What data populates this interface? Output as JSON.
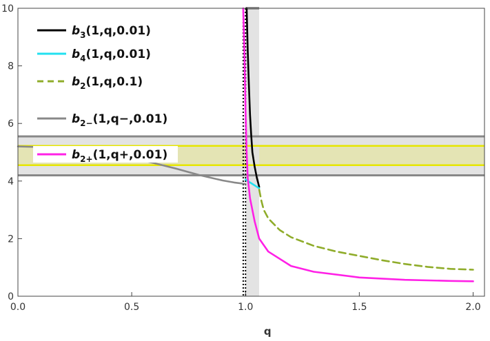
{
  "chart_data": {
    "type": "line",
    "title": "",
    "xlabel": "q",
    "ylabel": "",
    "xlim": [
      0,
      2.05
    ],
    "ylim": [
      0,
      10
    ],
    "xticks": [
      0.0,
      0.5,
      1.0,
      1.5,
      2.0
    ],
    "xtick_labels": [
      "0.0",
      "0.5",
      "1.0",
      "1.5",
      "2.0"
    ],
    "yticks": [
      0,
      2,
      4,
      6,
      8,
      10
    ],
    "ytick_labels": [
      "0",
      "2",
      "4",
      "6",
      "8",
      "10"
    ],
    "grid": false,
    "legend_position": "top-left",
    "series": [
      {
        "name": "b3(1,q,0.01)",
        "label_parts": {
          "main": "b",
          "sub": "3",
          "args": "(1,q,0.01)"
        },
        "color": "#000000",
        "style": "solid",
        "points": [
          [
            1.005,
            10
          ],
          [
            1.01,
            8.5
          ],
          [
            1.015,
            7.3
          ],
          [
            1.02,
            6.3
          ],
          [
            1.025,
            5.6
          ],
          [
            1.03,
            5.0
          ],
          [
            1.04,
            4.5
          ],
          [
            1.05,
            4.1
          ],
          [
            1.06,
            3.8
          ]
        ]
      },
      {
        "name": "b4(1,q,0.01)",
        "label_parts": {
          "main": "b",
          "sub": "4",
          "args": "(1,q,0.01)"
        },
        "color": "#22e0f0",
        "style": "solid",
        "points": [
          [
            1.0,
            4.05
          ],
          [
            1.03,
            3.9
          ],
          [
            1.06,
            3.75
          ]
        ]
      },
      {
        "name": "b2(1,q,0.1)",
        "label_parts": {
          "main": "b",
          "sub": "2",
          "args": "(1,q,0.1)"
        },
        "color": "#8fac2a",
        "style": "dashed",
        "points": [
          [
            1.06,
            3.7
          ],
          [
            1.07,
            3.3
          ],
          [
            1.08,
            3.0
          ],
          [
            1.1,
            2.7
          ],
          [
            1.15,
            2.3
          ],
          [
            1.2,
            2.05
          ],
          [
            1.3,
            1.75
          ],
          [
            1.4,
            1.55
          ],
          [
            1.5,
            1.4
          ],
          [
            1.6,
            1.25
          ],
          [
            1.7,
            1.12
          ],
          [
            1.8,
            1.02
          ],
          [
            1.9,
            0.95
          ],
          [
            2.0,
            0.92
          ]
        ]
      },
      {
        "name": "b2-(1,q-,0.01)",
        "label_parts": {
          "main": "b",
          "sub": "2−",
          "args": "(1,q−,0.01)"
        },
        "color": "#888888",
        "style": "solid",
        "points": [
          [
            0.0,
            5.2
          ],
          [
            0.1,
            5.18
          ],
          [
            0.2,
            5.12
          ],
          [
            0.3,
            5.03
          ],
          [
            0.4,
            4.92
          ],
          [
            0.5,
            4.8
          ],
          [
            0.6,
            4.62
          ],
          [
            0.7,
            4.42
          ],
          [
            0.8,
            4.2
          ],
          [
            0.9,
            4.02
          ],
          [
            0.95,
            3.95
          ],
          [
            1.0,
            3.9
          ]
        ]
      },
      {
        "name": "b2+(1,q+,0.01)",
        "label_parts": {
          "main": "b",
          "sub": "2+",
          "args": "(1,q+,0.01)"
        },
        "color": "#ff20e6",
        "style": "solid",
        "points": [
          [
            0.99,
            10
          ],
          [
            0.995,
            8.5
          ],
          [
            1.0,
            6.5
          ],
          [
            1.005,
            5.0
          ],
          [
            1.01,
            4.1
          ],
          [
            1.02,
            3.4
          ],
          [
            1.04,
            2.6
          ],
          [
            1.06,
            2.0
          ],
          [
            1.1,
            1.55
          ],
          [
            1.2,
            1.05
          ],
          [
            1.3,
            0.85
          ],
          [
            1.5,
            0.65
          ],
          [
            1.7,
            0.57
          ],
          [
            1.9,
            0.53
          ],
          [
            2.0,
            0.52
          ]
        ]
      }
    ],
    "reference_lines": {
      "horizontal_gray": {
        "color": "#888888",
        "y": [
          4.2,
          5.55
        ]
      },
      "horizontal_yellow": {
        "color": "#e6e600",
        "y": [
          4.55,
          5.22
        ]
      },
      "vertical_dotted": {
        "color": "#000000",
        "x": [
          0.99,
          1.0
        ]
      }
    },
    "shaded_regions": {
      "gray_horizontal_band": {
        "color": "#e3e3e3",
        "y": [
          4.2,
          5.55
        ]
      },
      "yellow_horizontal_band": {
        "color": "#e4e4b4",
        "y": [
          4.55,
          5.22
        ]
      },
      "gray_vertical_band": {
        "color": "#e0e0e0",
        "x": [
          1.0,
          1.06
        ]
      }
    }
  }
}
